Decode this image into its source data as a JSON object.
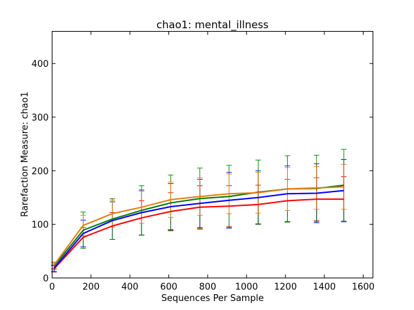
{
  "chart_data": {
    "type": "line",
    "title": "chao1: mental_illness",
    "xlabel": "Sequences Per Sample",
    "ylabel": "Rarefaction Measure: chao1",
    "xlim": [
      0,
      1650
    ],
    "ylim": [
      0,
      460
    ],
    "xticks": [
      0,
      200,
      400,
      600,
      800,
      1000,
      1200,
      1400,
      1600
    ],
    "yticks": [
      0,
      100,
      200,
      300,
      400
    ],
    "x": [
      10,
      160,
      310,
      460,
      610,
      760,
      910,
      1060,
      1210,
      1360,
      1500
    ],
    "grid": false,
    "legend": "none",
    "series": [
      {
        "color": "#ff0000",
        "values": [
          17,
          76,
          97,
          112,
          124,
          132,
          134,
          137,
          144,
          147,
          147
        ],
        "errors": [
          6,
          18,
          25,
          32,
          35,
          40,
          38,
          36,
          40,
          40,
          42
        ]
      },
      {
        "color": "#0000ff",
        "values": [
          18,
          83,
          107,
          122,
          133,
          139,
          145,
          150,
          157,
          158,
          163
        ],
        "errors": [
          6,
          25,
          35,
          42,
          43,
          45,
          52,
          50,
          52,
          55,
          58
        ]
      },
      {
        "color": "#008000",
        "values": [
          22,
          89,
          110,
          126,
          140,
          148,
          152,
          160,
          166,
          167,
          173
        ],
        "errors": [
          6,
          34,
          38,
          46,
          52,
          57,
          58,
          60,
          62,
          62,
          67
        ]
      },
      {
        "color": "#e87b10",
        "values": [
          24,
          98,
          120,
          132,
          146,
          152,
          157,
          159,
          166,
          168,
          170
        ],
        "errors": [
          6,
          19,
          25,
          30,
          33,
          35,
          37,
          38,
          40,
          40,
          42
        ]
      }
    ]
  }
}
